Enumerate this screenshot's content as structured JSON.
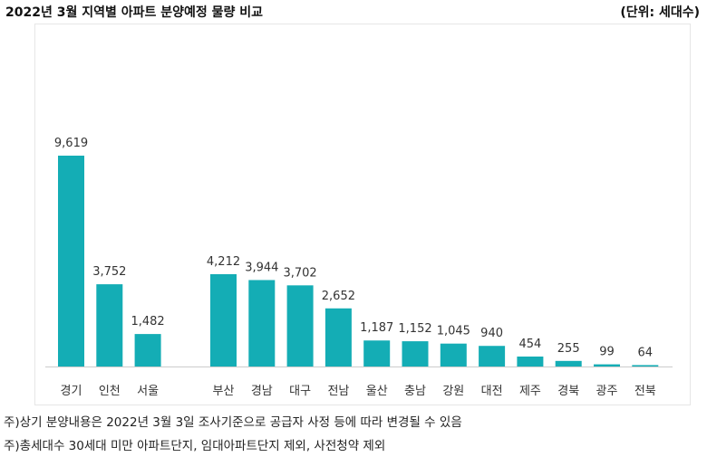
{
  "header": {
    "title": "2022년 3월 지역별 아파트 분양예정 물량 비교",
    "unit": "(단위: 세대수)"
  },
  "notes": [
    "주)상기 분양내용은 2022년 3월 3일 조사기준으로 공급자 사정 등에 따라 변경될 수 있음",
    "주)총세대수 30세대 미만 아파트단지, 임대아파트단지 제외, 사전청약 제외"
  ],
  "colors": {
    "bar": "#14adb5",
    "axis": "#cccccc"
  },
  "chart_data": {
    "type": "bar",
    "title": "2022년 3월 지역별 아파트 분양예정 물량 비교",
    "ylabel": "세대수",
    "ylim": [
      0,
      10500
    ],
    "grid": false,
    "groups": [
      {
        "categories": [
          "경기",
          "인천",
          "서울"
        ],
        "values": [
          9619,
          3752,
          1482
        ],
        "labels": [
          "9,619",
          "3,752",
          "1,482"
        ]
      },
      {
        "categories": [
          "부산",
          "경남",
          "대구",
          "전남",
          "울산",
          "충남",
          "강원",
          "대전",
          "제주",
          "경북",
          "광주",
          "전북"
        ],
        "values": [
          4212,
          3944,
          3702,
          2652,
          1187,
          1152,
          1045,
          940,
          454,
          255,
          99,
          64
        ],
        "labels": [
          "4,212",
          "3,944",
          "3,702",
          "2,652",
          "1,187",
          "1,152",
          "1,045",
          "940",
          "454",
          "255",
          "99",
          "64"
        ]
      }
    ]
  }
}
